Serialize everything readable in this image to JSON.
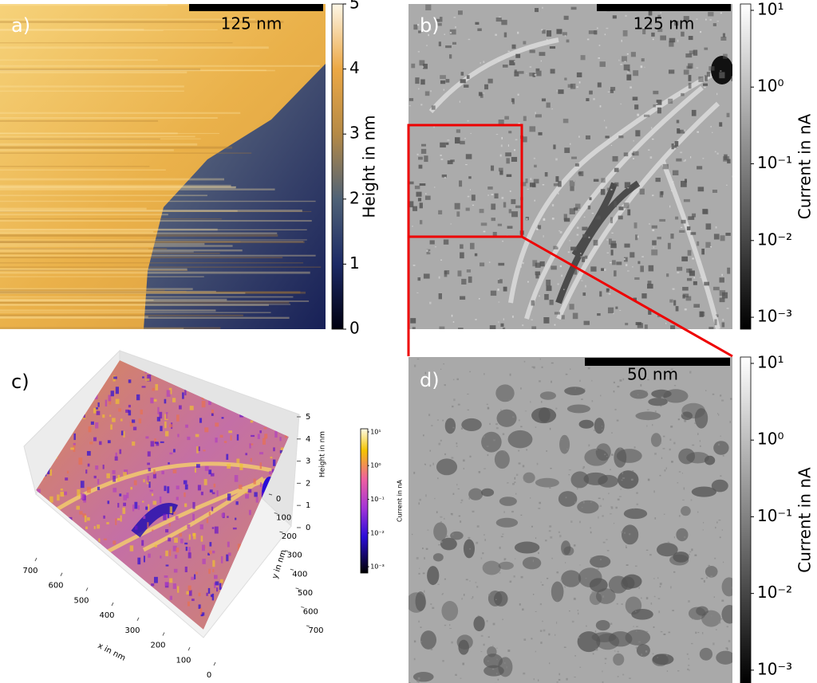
{
  "panels": [
    {
      "label": "a)",
      "scale_bar": "125 nm",
      "colorbar": {
        "label": "Height in nm",
        "scale": "linear",
        "lim": [
          0,
          5
        ],
        "ticks": [
          0,
          1,
          2,
          3,
          4,
          5
        ]
      }
    },
    {
      "label": "b)",
      "scale_bar": "125 nm",
      "colorbar": {
        "label": "Current in nA",
        "scale": "log",
        "lim": [
          0.0007,
          12.1
        ],
        "ticks": [
          {
            "value": 10,
            "label": "10¹"
          },
          {
            "value": 1,
            "label": "10⁰"
          },
          {
            "value": 0.1,
            "label": "10⁻¹"
          },
          {
            "value": 0.01,
            "label": "10⁻²"
          },
          {
            "value": 0.001,
            "label": "10⁻³"
          }
        ]
      }
    },
    {
      "label": "c)",
      "x_label": "x in nm",
      "y_label": "y in nm",
      "z_label": "Height in nm",
      "xlim": [
        0,
        700
      ],
      "xticks": [
        0,
        100,
        200,
        300,
        400,
        500,
        600,
        700
      ],
      "ylim": [
        0,
        700
      ],
      "yticks": [
        0,
        100,
        200,
        300,
        400,
        500,
        600,
        700
      ],
      "zlim": [
        0,
        5
      ],
      "zticks": [
        0,
        1,
        2,
        3,
        4,
        5
      ],
      "colorbar": {
        "label": "Current in nA",
        "scale": "log",
        "lim": [
          0.00065,
          12.4
        ],
        "ticks": [
          {
            "value": 10,
            "label": "10¹"
          },
          {
            "value": 1,
            "label": "10⁰"
          },
          {
            "value": 0.1,
            "label": "10⁻¹"
          },
          {
            "value": 0.01,
            "label": "10⁻²"
          },
          {
            "value": 0.001,
            "label": "10⁻³"
          }
        ]
      }
    },
    {
      "label": "d)",
      "scale_bar": "50 nm",
      "colorbar": {
        "label": "Current in nA",
        "scale": "log",
        "lim": [
          0.00068,
          12.1
        ],
        "ticks": [
          {
            "value": 10,
            "label": "10¹"
          },
          {
            "value": 1,
            "label": "10⁰"
          },
          {
            "value": 0.1,
            "label": "10⁻¹"
          },
          {
            "value": 0.01,
            "label": "10⁻²"
          },
          {
            "value": 0.001,
            "label": "10⁻³"
          }
        ]
      }
    }
  ]
}
